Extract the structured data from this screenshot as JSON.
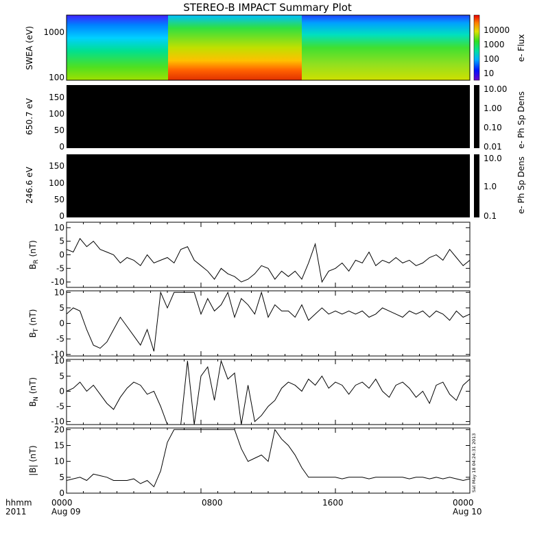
{
  "title": "STEREO-B IMPACT Summary Plot",
  "footer": {
    "left_top": "hhmm",
    "left_bottom": "2011",
    "ticks": [
      "0000",
      "0800",
      "1600",
      "0000"
    ],
    "dates": [
      "Aug 09",
      "Aug 10"
    ]
  },
  "timestamp": "Sat May 18 04:24:31 2013",
  "chart_data": [
    {
      "type": "heatmap",
      "ylabel": "SWEA (eV)",
      "yticks": [
        "1000",
        "100"
      ],
      "colorbar": {
        "label": "e- Flux",
        "ticks": [
          "10000",
          "1000",
          "100",
          "10"
        ]
      }
    },
    {
      "type": "heatmap",
      "ylabel": "650.7 eV",
      "yticks": [
        "150",
        "100",
        "50",
        "0"
      ],
      "colorbar": {
        "label": "e- Ph Sp Dens",
        "ticks": [
          "10.00",
          "1.00",
          "0.10",
          "0.01"
        ]
      }
    },
    {
      "type": "heatmap",
      "ylabel": "246.6 eV",
      "yticks": [
        "150",
        "100",
        "50",
        "0"
      ],
      "colorbar": {
        "label": "e- Ph Sp Dens",
        "ticks": [
          "10.0",
          "1.0",
          "0.1"
        ]
      }
    },
    {
      "type": "line",
      "ylabel": "B_R (nT)",
      "ylabel_main": "B",
      "ylabel_sub": "R",
      "ylabel_unit": " (nT)",
      "ylim": [
        -12,
        12
      ],
      "yticks": [
        "10",
        "5",
        "0",
        "-5",
        "-10"
      ],
      "x_hours": [
        0,
        0.4,
        0.8,
        1.2,
        1.6,
        2,
        2.4,
        2.8,
        3.2,
        3.6,
        4,
        4.4,
        4.8,
        5.2,
        5.6,
        6,
        6.4,
        6.8,
        7.2,
        7.6,
        8,
        8.4,
        8.8,
        9.2,
        9.6,
        10,
        10.4,
        10.8,
        11.2,
        11.6,
        12,
        12.4,
        12.8,
        13.2,
        13.6,
        14,
        14.4,
        14.8,
        15.2,
        15.6,
        16,
        16.4,
        16.8,
        17.2,
        17.6,
        18,
        18.4,
        18.8,
        19.2,
        19.6,
        20,
        20.4,
        20.8,
        21.2,
        21.6,
        22,
        22.4,
        22.8,
        23.2,
        23.6,
        24
      ],
      "values": [
        2,
        1,
        6,
        3,
        5,
        2,
        1,
        0,
        -3,
        -1,
        -2,
        -4,
        0,
        -3,
        -2,
        -1,
        -3,
        2,
        3,
        -2,
        -4,
        -6,
        -9,
        -5,
        -7,
        -8,
        -10,
        -9,
        -7,
        -4,
        -5,
        -9,
        -6,
        -8,
        -6,
        -9,
        -3,
        4,
        -10,
        -6,
        -5,
        -3,
        -6,
        -2,
        -3,
        1,
        -4,
        -2,
        -3,
        -1,
        -3,
        -2,
        -4,
        -3,
        -1,
        0,
        -2,
        2,
        -1,
        -4,
        -2
      ],
      "color": "#000000"
    },
    {
      "type": "line",
      "ylabel": "B_T (nT)",
      "ylabel_main": "B",
      "ylabel_sub": "T",
      "ylabel_unit": " (nT)",
      "ylim": [
        -10.5,
        10.5
      ],
      "yticks": [
        "10",
        "5",
        "0",
        "-5",
        "-10"
      ],
      "x_hours": [
        0,
        0.4,
        0.8,
        1.2,
        1.6,
        2,
        2.4,
        2.8,
        3.2,
        3.6,
        4,
        4.4,
        4.8,
        5.2,
        5.6,
        6,
        6.4,
        6.8,
        7.2,
        7.6,
        8,
        8.4,
        8.8,
        9.2,
        9.6,
        10,
        10.4,
        10.8,
        11.2,
        11.6,
        12,
        12.4,
        12.8,
        13.2,
        13.6,
        14,
        14.4,
        14.8,
        15.2,
        15.6,
        16,
        16.4,
        16.8,
        17.2,
        17.6,
        18,
        18.4,
        18.8,
        19.2,
        19.6,
        20,
        20.4,
        20.8,
        21.2,
        21.6,
        22,
        22.4,
        22.8,
        23.2,
        23.6,
        24
      ],
      "values": [
        3,
        5,
        4,
        -2,
        -7,
        -8,
        -6,
        -2,
        2,
        -1,
        -4,
        -7,
        -2,
        -9,
        10,
        5,
        10,
        10,
        10,
        10,
        3,
        8,
        4,
        6,
        10,
        2,
        8,
        6,
        3,
        10,
        2,
        6,
        4,
        4,
        2,
        6,
        1,
        3,
        5,
        3,
        4,
        3,
        4,
        3,
        4,
        2,
        3,
        5,
        4,
        3,
        2,
        4,
        3,
        4,
        2,
        4,
        3,
        1,
        4,
        2,
        3
      ],
      "color": "#000000"
    },
    {
      "type": "line",
      "ylabel": "B_N (nT)",
      "ylabel_main": "B",
      "ylabel_sub": "N",
      "ylabel_unit": " (nT)",
      "ylim": [
        -11,
        10.5
      ],
      "yticks": [
        "10",
        "5",
        "0",
        "-5",
        "-10"
      ],
      "x_hours": [
        0,
        0.4,
        0.8,
        1.2,
        1.6,
        2,
        2.4,
        2.8,
        3.2,
        3.6,
        4,
        4.4,
        4.8,
        5.2,
        5.6,
        6,
        6.4,
        6.8,
        7.2,
        7.6,
        8,
        8.4,
        8.8,
        9.2,
        9.6,
        10,
        10.4,
        10.8,
        11.2,
        11.6,
        12,
        12.4,
        12.8,
        13.2,
        13.6,
        14,
        14.4,
        14.8,
        15.2,
        15.6,
        16,
        16.4,
        16.8,
        17.2,
        17.6,
        18,
        18.4,
        18.8,
        19.2,
        19.6,
        20,
        20.4,
        20.8,
        21.2,
        21.6,
        22,
        22.4,
        22.8,
        23.2,
        23.6,
        24
      ],
      "values": [
        0,
        1,
        3,
        0,
        2,
        -1,
        -4,
        -6,
        -2,
        1,
        3,
        2,
        -1,
        0,
        -5,
        -11,
        -11,
        -11,
        10,
        -11,
        5,
        8,
        -3,
        10,
        4,
        6,
        -11,
        2,
        -10,
        -8,
        -5,
        -3,
        1,
        3,
        2,
        0,
        4,
        2,
        5,
        1,
        3,
        2,
        -1,
        2,
        3,
        1,
        4,
        0,
        -2,
        2,
        3,
        1,
        -2,
        0,
        -4,
        2,
        3,
        -1,
        -3,
        2,
        4
      ],
      "color": "#000000"
    },
    {
      "type": "line",
      "ylabel": "|B| (nT)",
      "ylabel_main": "|B| (nT)",
      "ylabel_sub": "",
      "ylabel_unit": "",
      "ylim": [
        0,
        20.5
      ],
      "yticks": [
        "20",
        "15",
        "10",
        "5",
        "0"
      ],
      "x_hours": [
        0,
        0.4,
        0.8,
        1.2,
        1.6,
        2,
        2.4,
        2.8,
        3.2,
        3.6,
        4,
        4.4,
        4.8,
        5.2,
        5.6,
        6,
        6.4,
        6.8,
        7.2,
        7.6,
        8,
        8.4,
        8.8,
        9.2,
        9.6,
        10,
        10.4,
        10.8,
        11.2,
        11.6,
        12,
        12.4,
        12.8,
        13.2,
        13.6,
        14,
        14.4,
        14.8,
        15.2,
        15.6,
        16,
        16.4,
        16.8,
        17.2,
        17.6,
        18,
        18.4,
        18.8,
        19.2,
        19.6,
        20,
        20.4,
        20.8,
        21.2,
        21.6,
        22,
        22.4,
        22.8,
        23.2,
        23.6,
        24
      ],
      "values": [
        4,
        4.5,
        5,
        4,
        6,
        5.5,
        5,
        4,
        4,
        4,
        4.5,
        3,
        4,
        2,
        7,
        16,
        20,
        20,
        20,
        20,
        20,
        20,
        20,
        20,
        20,
        20,
        14,
        10,
        11,
        12,
        10,
        20,
        17,
        15,
        12,
        8,
        5,
        5,
        5,
        5,
        5,
        4.5,
        5,
        5,
        5,
        4.5,
        5,
        5,
        5,
        5,
        5,
        4.5,
        5,
        5,
        4.5,
        5,
        4.5,
        5,
        4.5,
        4,
        4.5
      ],
      "color": "#000000"
    }
  ]
}
